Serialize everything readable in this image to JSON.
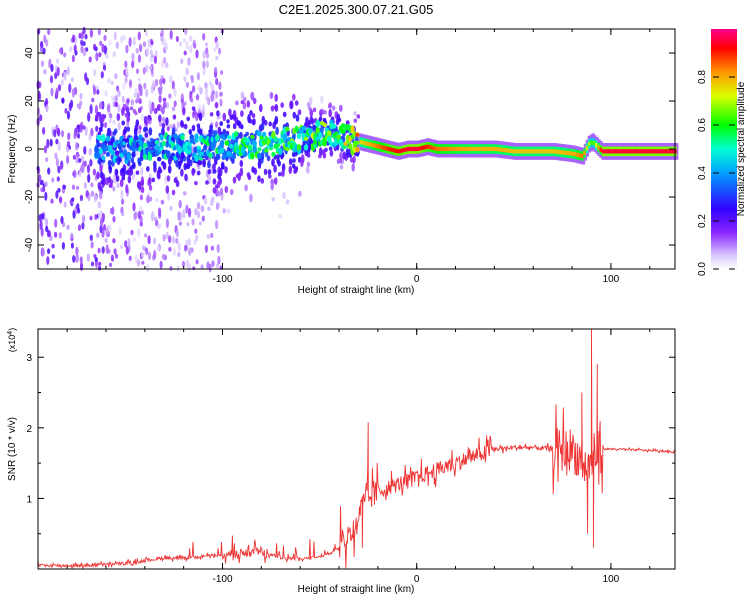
{
  "figure_title": "C2E1.2025.300.07.21.G05",
  "colorbar": {
    "label": "Normalized spectral amplitude",
    "ticks": [
      0.0,
      0.2,
      0.4,
      0.6,
      0.8
    ],
    "tick_labels": [
      "0.0",
      "0.2",
      "0.4",
      "0.6",
      "0.8"
    ],
    "range": [
      0,
      1
    ],
    "colormap": [
      "#ffffff",
      "#8000ff",
      "#0000ff",
      "#00ffff",
      "#00ff00",
      "#ffff00",
      "#ff8000",
      "#ff0000",
      "#ff0080"
    ]
  },
  "chart_data": [
    {
      "type": "heatmap",
      "title": "C2E1.2025.300.07.21.G05",
      "xlabel": "Height of straight line (km)",
      "ylabel": "Frequency (Hz)",
      "xlim": [
        -195,
        133
      ],
      "ylim": [
        -50,
        50
      ],
      "xticks": [
        -100,
        0,
        100
      ],
      "xtick_labels": [
        "-100",
        "0",
        "100"
      ],
      "yticks": [
        -40,
        -20,
        0,
        20,
        40
      ],
      "ytick_labels": [
        "-40",
        "-20",
        "0",
        "20",
        "40"
      ],
      "ridge": {
        "x": [
          -160,
          -140,
          -120,
          -100,
          -80,
          -60,
          -50,
          -45,
          -40,
          -35,
          -30,
          -25,
          -20,
          -15,
          -10,
          -5,
          0,
          5,
          10,
          20,
          30,
          40,
          50,
          60,
          70,
          80,
          85,
          88,
          90,
          95,
          100,
          110,
          120,
          130
        ],
        "freq": [
          0,
          0,
          1,
          1,
          2,
          4,
          6,
          7,
          6,
          4,
          3,
          2,
          1,
          0,
          -1,
          0,
          0,
          1,
          0,
          0,
          0,
          0,
          -1,
          -1,
          -1,
          -2,
          -3,
          2,
          3,
          -1,
          -1,
          -1,
          -1,
          -1
        ],
        "amplitude": [
          0.35,
          0.4,
          0.4,
          0.45,
          0.5,
          0.55,
          0.6,
          0.55,
          0.6,
          0.7,
          0.75,
          0.8,
          0.85,
          0.9,
          0.92,
          0.95,
          0.95,
          0.9,
          0.85,
          0.82,
          0.8,
          0.8,
          0.78,
          0.78,
          0.78,
          0.8,
          0.85,
          0.7,
          0.6,
          0.95,
          0.95,
          0.95,
          0.95,
          0.95
        ]
      }
    },
    {
      "type": "line",
      "xlabel": "Height of straight line (km)",
      "ylabel": "SNR (10 * v/v)",
      "y_multiplier_label": "(x10",
      "y_multiplier_exp": "4",
      "y_multiplier_close": ")",
      "xlim": [
        -195,
        133
      ],
      "ylim": [
        0,
        3.4
      ],
      "xticks": [
        -100,
        0,
        100
      ],
      "xtick_labels": [
        "-100",
        "0",
        "100"
      ],
      "yticks": [
        1,
        2,
        3
      ],
      "ytick_labels": [
        "1",
        "2",
        "3"
      ],
      "color": "#ee3333",
      "series": [
        {
          "name": "SNR",
          "x": [
            -195,
            -170,
            -150,
            -140,
            -130,
            -120,
            -110,
            -100,
            -90,
            -80,
            -70,
            -60,
            -50,
            -45,
            -40,
            -35,
            -30,
            -28,
            -25,
            -20,
            -15,
            -10,
            -5,
            0,
            10,
            20,
            30,
            40,
            50,
            60,
            70,
            75,
            80,
            83,
            85,
            88,
            90,
            92,
            95,
            100,
            110,
            120,
            133
          ],
          "y": [
            0.05,
            0.05,
            0.08,
            0.12,
            0.16,
            0.15,
            0.18,
            0.2,
            0.22,
            0.24,
            0.16,
            0.14,
            0.18,
            0.22,
            0.3,
            0.45,
            0.7,
            0.9,
            1.0,
            1.1,
            1.15,
            1.2,
            1.25,
            1.3,
            1.4,
            1.5,
            1.6,
            1.7,
            1.72,
            1.72,
            1.7,
            1.68,
            1.7,
            1.6,
            1.5,
            1.4,
            1.5,
            1.6,
            1.7,
            1.7,
            1.69,
            1.68,
            1.66
          ]
        }
      ],
      "noise_amplitude": [
        {
          "x": [
            -195,
            -60
          ],
          "amp": 0.05
        },
        {
          "x": [
            -100,
            -75
          ],
          "amp": 0.15
        },
        {
          "x": [
            -40,
            -20
          ],
          "amp": 0.45
        },
        {
          "x": [
            -20,
            40
          ],
          "amp": 0.25
        },
        {
          "x": [
            40,
            70
          ],
          "amp": 0.08
        },
        {
          "x": [
            70,
            96
          ],
          "amp": 0.7
        },
        {
          "x": [
            96,
            133
          ],
          "amp": 0.02
        }
      ],
      "spikes": [
        {
          "x": -25,
          "y": 2.08
        },
        {
          "x": -28,
          "y": 0.3
        },
        {
          "x": 85,
          "y": 2.5
        },
        {
          "x": 88,
          "y": 0.5
        },
        {
          "x": 90,
          "y": 3.4
        },
        {
          "x": 91,
          "y": 0.3
        },
        {
          "x": 93,
          "y": 2.9
        }
      ]
    }
  ]
}
